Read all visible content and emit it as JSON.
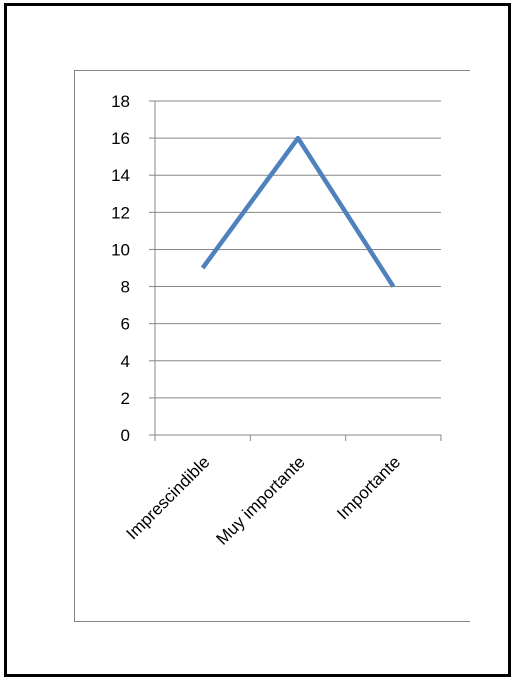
{
  "chart_data": {
    "type": "line",
    "categories": [
      "Imprescindible",
      "Muy importante",
      "Importante"
    ],
    "series": [
      {
        "values": [
          9,
          16,
          8
        ],
        "color": "#4f81bd"
      }
    ],
    "title": "",
    "xlabel": "",
    "ylabel": "",
    "ylim": [
      0,
      18
    ],
    "yticks": [
      0,
      2,
      4,
      6,
      8,
      10,
      12,
      14,
      16,
      18
    ],
    "grid": true,
    "legend": "none",
    "gridColor": "#868686",
    "axisColor": "#868686"
  }
}
